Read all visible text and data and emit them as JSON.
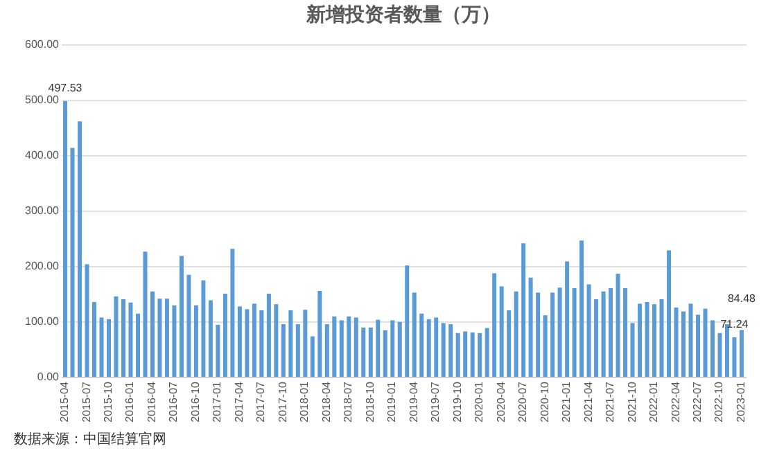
{
  "chart_data": {
    "type": "bar",
    "title": "新增投资者数量（万）",
    "annotations": [
      "数据来源：中国结算官网"
    ],
    "categories": [
      "2015-04",
      null,
      null,
      "2015-07",
      null,
      null,
      "2015-10",
      null,
      null,
      "2016-01",
      null,
      null,
      "2016-04",
      null,
      null,
      "2016-07",
      null,
      null,
      "2016-10",
      null,
      null,
      "2017-01",
      null,
      null,
      "2017-04",
      null,
      null,
      "2017-07",
      null,
      null,
      "2017-10",
      null,
      null,
      "2018-01",
      null,
      null,
      "2018-04",
      null,
      null,
      "2018-07",
      null,
      null,
      "2018-10",
      null,
      null,
      "2019-01",
      null,
      null,
      "2019-04",
      null,
      null,
      "2019-07",
      null,
      null,
      "2019-10",
      null,
      null,
      "2020-01",
      null,
      null,
      "2020-04",
      null,
      null,
      "2020-07",
      null,
      null,
      "2020-10",
      null,
      null,
      "2021-01",
      null,
      null,
      "2021-04",
      null,
      null,
      "2021-07",
      null,
      null,
      "2021-10",
      null,
      null,
      "2022-01",
      null,
      null,
      "2022-04",
      null,
      null,
      "2022-07",
      null,
      null,
      "2022-10",
      null,
      null,
      "2023-01"
    ],
    "values": [
      497.53,
      413,
      461,
      203,
      135,
      107,
      104,
      145,
      140,
      134,
      114,
      226,
      154,
      141,
      141,
      129,
      218,
      184,
      129,
      174,
      138,
      94,
      150,
      231,
      127,
      122,
      132,
      120,
      150,
      131,
      95,
      120,
      95,
      121,
      73,
      155,
      95,
      109,
      102,
      109,
      107,
      89,
      89,
      103,
      84,
      102,
      99,
      201,
      152,
      114,
      104,
      107,
      97,
      95,
      79,
      82,
      80,
      79,
      88,
      187,
      163,
      120,
      154,
      241,
      179,
      152,
      111,
      152,
      161,
      208,
      160,
      246,
      167,
      140,
      154,
      160,
      186,
      160,
      97,
      132,
      135,
      131,
      140,
      228,
      125,
      118,
      132,
      112,
      123,
      102,
      79,
      95,
      71.24,
      84.48
    ],
    "value_labels": [
      "497.53",
      null,
      null,
      null,
      null,
      null,
      null,
      null,
      null,
      null,
      null,
      null,
      null,
      null,
      null,
      null,
      null,
      null,
      null,
      null,
      null,
      null,
      null,
      null,
      null,
      null,
      null,
      null,
      null,
      null,
      null,
      null,
      null,
      null,
      null,
      null,
      null,
      null,
      null,
      null,
      null,
      null,
      null,
      null,
      null,
      null,
      null,
      null,
      null,
      null,
      null,
      null,
      null,
      null,
      null,
      null,
      null,
      null,
      null,
      null,
      null,
      null,
      null,
      null,
      null,
      null,
      null,
      null,
      null,
      null,
      null,
      null,
      null,
      null,
      null,
      null,
      null,
      null,
      null,
      null,
      null,
      null,
      null,
      null,
      null,
      null,
      null,
      null,
      null,
      null,
      null,
      null,
      "71.24",
      "84.48"
    ],
    "color": "#5b9bd5",
    "ylim": [
      0,
      600
    ],
    "yticks": [
      {
        "value": 0,
        "label": "0.00"
      },
      {
        "value": 100,
        "label": "100.00"
      },
      {
        "value": 200,
        "label": "200.00"
      },
      {
        "value": 300,
        "label": "300.00"
      },
      {
        "value": 400,
        "label": "400.00"
      },
      {
        "value": 500,
        "label": "500.00"
      },
      {
        "value": 600,
        "label": "600.00"
      }
    ],
    "grid": "y"
  }
}
